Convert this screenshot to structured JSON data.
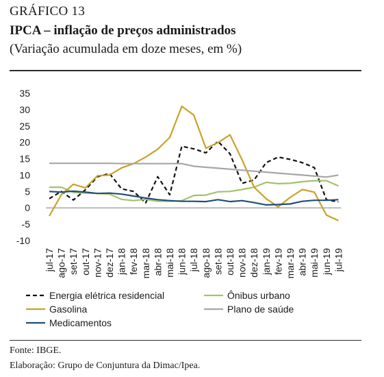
{
  "header": {
    "label": "GRÁFICO 13",
    "title": "IPCA – inflação de preços administrados",
    "subtitle": "(Variação acumulada em doze meses, em %)"
  },
  "footer": {
    "source": "Fonte: IBGE.",
    "elaboration": "Elaboração: Grupo de Conjuntura da Dimac/Ipea."
  },
  "chart_data": {
    "type": "line",
    "title": "IPCA – inflação de preços administrados",
    "subtitle": "(Variação acumulada em doze meses, em %)",
    "xlabel": "",
    "ylabel": "",
    "ylim": [
      -10,
      35
    ],
    "yticks": [
      -10,
      -5,
      0,
      5,
      10,
      15,
      20,
      25,
      30,
      35
    ],
    "grid": false,
    "legend_position": "bottom",
    "categories": [
      "jul-17",
      "ago-17",
      "set-17",
      "out-17",
      "nov-17",
      "dez-17",
      "jan-18",
      "fev-18",
      "mar-18",
      "abr-18",
      "mai-18",
      "jun-18",
      "jul-18",
      "ago-18",
      "set-18",
      "out-18",
      "nov-18",
      "dez-18",
      "jan-19",
      "fev-19",
      "mar-19",
      "abr-19",
      "mai-19",
      "jun-19",
      "jul-19"
    ],
    "series": [
      {
        "name": "Energia elétrica residencial",
        "color": "#111111",
        "dash": true,
        "values": [
          2.8,
          5.0,
          2.4,
          5.5,
          9.5,
          10.5,
          5.8,
          5.0,
          1.5,
          9.5,
          4.0,
          18.8,
          18.0,
          16.8,
          20.3,
          16.5,
          7.5,
          8.5,
          13.8,
          15.5,
          14.8,
          13.8,
          12.3,
          2.5,
          1.8
        ]
      },
      {
        "name": "Ônibus urbano",
        "color": "#a3c26b",
        "dash": false,
        "values": [
          6.3,
          6.3,
          4.7,
          4.5,
          4.4,
          4.2,
          2.6,
          2.2,
          2.6,
          2.0,
          2.0,
          2.2,
          3.8,
          3.9,
          4.9,
          5.0,
          5.6,
          6.3,
          7.8,
          7.4,
          7.5,
          8.0,
          8.3,
          8.3,
          6.7
        ]
      },
      {
        "name": "Gasolina",
        "color": "#c9a227",
        "dash": false,
        "values": [
          -2.5,
          4.0,
          7.2,
          6.1,
          9.8,
          10.0,
          12.2,
          13.5,
          15.5,
          17.9,
          21.5,
          31.0,
          28.3,
          18.2,
          19.9,
          22.3,
          14.7,
          6.3,
          2.8,
          0.3,
          3.2,
          5.6,
          4.8,
          -2.2,
          -3.9
        ]
      },
      {
        "name": "Plano de saúde",
        "color": "#a6a6a6",
        "dash": false,
        "values": [
          13.6,
          13.6,
          13.6,
          13.6,
          13.6,
          13.6,
          13.5,
          13.5,
          13.5,
          13.5,
          13.5,
          13.5,
          12.7,
          12.4,
          12.1,
          11.8,
          11.5,
          11.2,
          10.9,
          10.6,
          10.3,
          10.0,
          9.7,
          9.4,
          10.0
        ]
      },
      {
        "name": "Medicamentos",
        "color": "#1f4e79",
        "dash": false,
        "values": [
          5.0,
          4.8,
          5.1,
          4.8,
          4.4,
          4.5,
          4.2,
          3.6,
          3.0,
          2.5,
          2.2,
          2.0,
          2.0,
          1.9,
          2.5,
          1.9,
          2.2,
          1.6,
          0.9,
          1.0,
          1.2,
          2.0,
          2.3,
          2.3,
          2.5
        ]
      }
    ]
  }
}
